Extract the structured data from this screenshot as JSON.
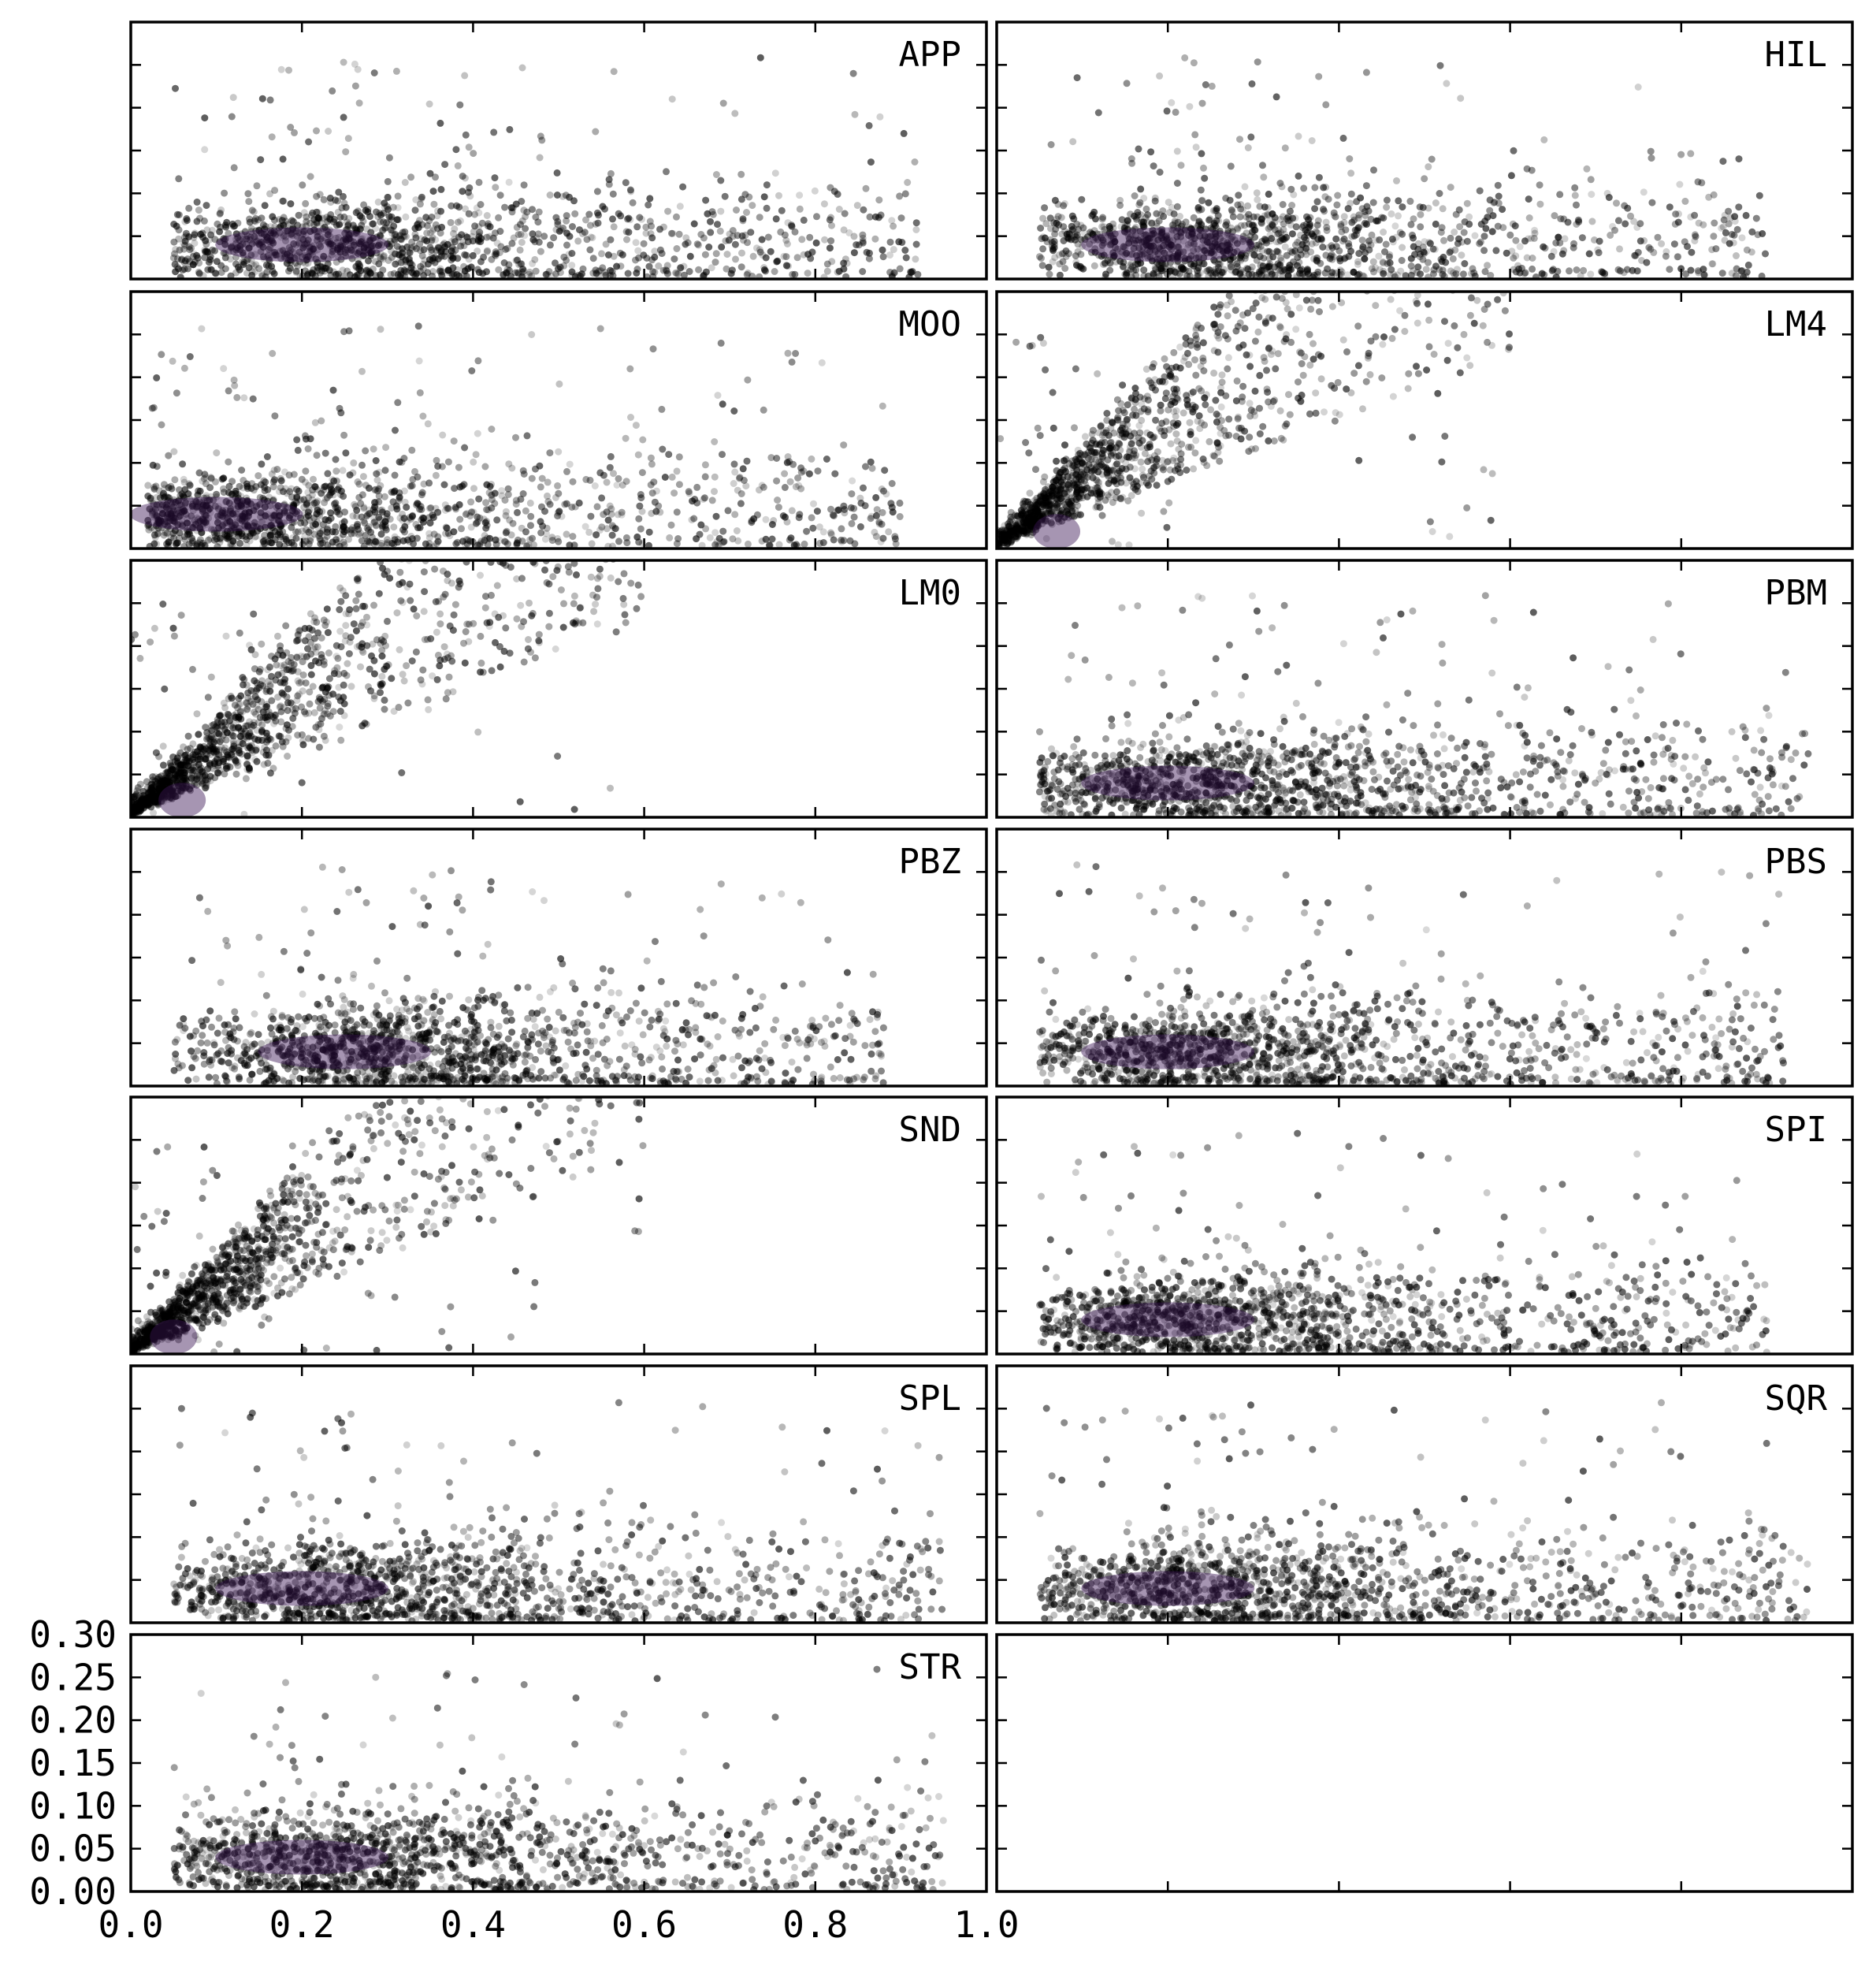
{
  "chart_data": {
    "type": "scatter",
    "layout": "7 rows x 2 columns of panels, shared axes, last panel empty",
    "xlim": [
      0.0,
      1.0
    ],
    "ylim": [
      0.0,
      0.3
    ],
    "x_ticks": [
      "0.0",
      "0.2",
      "0.4",
      "0.6",
      "0.8",
      "1.0"
    ],
    "y_ticks": [
      "0.00",
      "0.05",
      "0.10",
      "0.15",
      "0.20",
      "0.25",
      "0.30"
    ],
    "colormap": "inferno (density shading, dense core purple)",
    "point_color": "#000000",
    "panels": [
      {
        "label": "APP",
        "cluster": {
          "x_range": [
            0.05,
            0.92
          ],
          "y_center": 0.04,
          "peak_x": 0.2
        }
      },
      {
        "label": "HIL",
        "cluster": {
          "x_range": [
            0.05,
            0.9
          ],
          "y_center": 0.04,
          "peak_x": 0.2
        }
      },
      {
        "label": "MOO",
        "cluster": {
          "x_range": [
            0.02,
            0.9
          ],
          "y_center": 0.04,
          "peak_x": 0.1
        }
      },
      {
        "label": "LM4",
        "cluster": {
          "x_range": [
            0.0,
            0.6
          ],
          "y_center": 0.04,
          "peak_x": 0.05
        }
      },
      {
        "label": "LM0",
        "cluster": {
          "x_range": [
            0.0,
            0.6
          ],
          "y_center": 0.04,
          "peak_x": 0.04
        }
      },
      {
        "label": "PBM",
        "cluster": {
          "x_range": [
            0.05,
            0.95
          ],
          "y_center": 0.04,
          "peak_x": 0.2
        }
      },
      {
        "label": "PBZ",
        "cluster": {
          "x_range": [
            0.05,
            0.88
          ],
          "y_center": 0.04,
          "peak_x": 0.25
        }
      },
      {
        "label": "PBS",
        "cluster": {
          "x_range": [
            0.05,
            0.92
          ],
          "y_center": 0.04,
          "peak_x": 0.2
        }
      },
      {
        "label": "SND",
        "cluster": {
          "x_range": [
            0.0,
            0.6
          ],
          "y_center": 0.03,
          "peak_x": 0.03
        }
      },
      {
        "label": "SPI",
        "cluster": {
          "x_range": [
            0.05,
            0.9
          ],
          "y_center": 0.04,
          "peak_x": 0.2
        }
      },
      {
        "label": "SPL",
        "cluster": {
          "x_range": [
            0.05,
            0.95
          ],
          "y_center": 0.04,
          "peak_x": 0.2
        }
      },
      {
        "label": "SQR",
        "cluster": {
          "x_range": [
            0.05,
            0.95
          ],
          "y_center": 0.04,
          "peak_x": 0.2
        }
      },
      {
        "label": "STR",
        "cluster": {
          "x_range": [
            0.05,
            0.95
          ],
          "y_center": 0.04,
          "peak_x": 0.2
        }
      },
      {
        "label": "",
        "cluster": null
      }
    ]
  }
}
